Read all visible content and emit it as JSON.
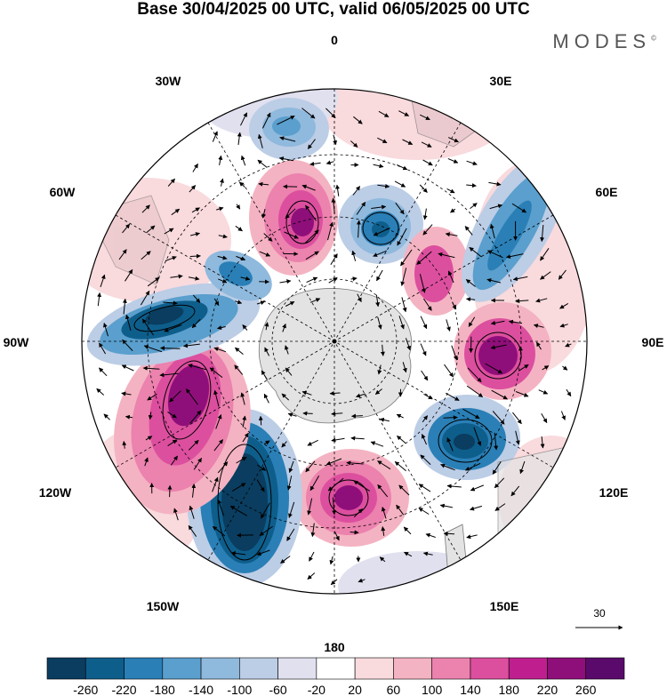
{
  "title": "Base 30/04/2025 00 UTC, valid 06/05/2025 00 UTC",
  "brand": "MODES",
  "brand_mark": "©",
  "lon_labels": {
    "l0": "0",
    "l30e": "30E",
    "l60e": "60E",
    "l90e": "90E",
    "l120e": "120E",
    "l150e": "150E",
    "l180": "180",
    "l150w": "150W",
    "l120w": "120W",
    "l90w": "90W",
    "l60w": "60W",
    "l30w": "30W"
  },
  "ref_vector_label": "30",
  "colorbar": {
    "ticks": [
      "-260",
      "-220",
      "-180",
      "-140",
      "-100",
      "-60",
      "-20",
      "20",
      "60",
      "100",
      "140",
      "180",
      "220",
      "260"
    ],
    "colors": [
      "#0a3d5f",
      "#0e5e8c",
      "#2a7fb6",
      "#5a9fcd",
      "#8fb9dd",
      "#bccde6",
      "#e0e0ef",
      "#ffffff",
      "#f9dadd",
      "#f4b3c2",
      "#ec82ae",
      "#dc4f9e",
      "#bf1f8e",
      "#8f0f7a",
      "#5a0a6b"
    ]
  },
  "colors": {
    "land": "#e3e3e3",
    "ocean": "#ffffff",
    "grid": "#000000"
  }
}
